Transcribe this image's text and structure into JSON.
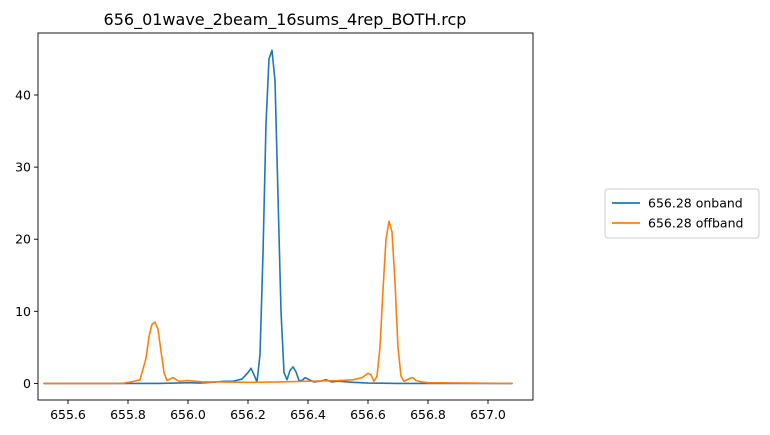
{
  "chart_data": {
    "type": "line",
    "title": "656_01wave_2beam_16sums_4rep_BOTH.rcp",
    "xlabel": "",
    "ylabel": "",
    "xlim": [
      655.5,
      657.15
    ],
    "ylim": [
      -2.3,
      48.6
    ],
    "xticks": [
      655.6,
      655.8,
      656.0,
      656.2,
      656.4,
      656.6,
      656.8,
      657.0
    ],
    "xtick_labels": [
      "655.6",
      "655.8",
      "656.0",
      "656.2",
      "656.4",
      "656.6",
      "656.8",
      "657.0"
    ],
    "yticks": [
      0,
      10,
      20,
      30,
      40
    ],
    "ytick_labels": [
      "0",
      "10",
      "20",
      "30",
      "40"
    ],
    "grid": false,
    "legend_position": "outside-right",
    "series": [
      {
        "name": "656.28 onband",
        "color": "#1f77b4",
        "x": [
          655.52,
          655.9,
          655.96,
          656.0,
          656.04,
          656.08,
          656.12,
          656.15,
          656.18,
          656.2,
          656.21,
          656.22,
          656.23,
          656.24,
          656.25,
          656.26,
          656.27,
          656.28,
          656.29,
          656.3,
          656.31,
          656.32,
          656.33,
          656.34,
          656.35,
          656.36,
          656.37,
          656.38,
          656.39,
          656.4,
          656.42,
          656.44,
          656.46,
          656.48,
          656.5,
          656.55,
          656.6,
          656.7,
          657.08
        ],
        "y": [
          0,
          0,
          0.05,
          0.1,
          0.05,
          0.15,
          0.3,
          0.3,
          0.6,
          1.5,
          2.1,
          1.2,
          0.2,
          4,
          18,
          36,
          45,
          46.2,
          42,
          26,
          10,
          1.5,
          0.5,
          1.8,
          2.3,
          1.6,
          0.4,
          0.4,
          0.8,
          0.6,
          0.2,
          0.3,
          0.5,
          0.2,
          0.3,
          0.15,
          0.05,
          0,
          0
        ]
      },
      {
        "name": "656.28 offband",
        "color": "#ff7f0e",
        "x": [
          655.52,
          655.78,
          655.82,
          655.84,
          655.86,
          655.87,
          655.88,
          655.89,
          655.9,
          655.91,
          655.92,
          655.93,
          655.95,
          655.97,
          656.0,
          656.05,
          656.1,
          656.2,
          656.3,
          656.4,
          656.5,
          656.55,
          656.58,
          656.6,
          656.61,
          656.62,
          656.63,
          656.64,
          656.65,
          656.66,
          656.67,
          656.68,
          656.69,
          656.7,
          656.71,
          656.72,
          656.74,
          656.75,
          656.76,
          656.78,
          656.8,
          657.08
        ],
        "y": [
          0,
          0,
          0.3,
          0.5,
          3.5,
          6.5,
          8.2,
          8.5,
          7.5,
          4.5,
          1.5,
          0.4,
          0.8,
          0.3,
          0.4,
          0.2,
          0.2,
          0.15,
          0.2,
          0.3,
          0.4,
          0.5,
          0.8,
          1.4,
          1.2,
          0.3,
          1,
          5,
          13,
          20,
          22.5,
          21,
          14,
          5,
          1,
          0.3,
          0.7,
          0.8,
          0.4,
          0.2,
          0.1,
          0
        ]
      }
    ]
  }
}
